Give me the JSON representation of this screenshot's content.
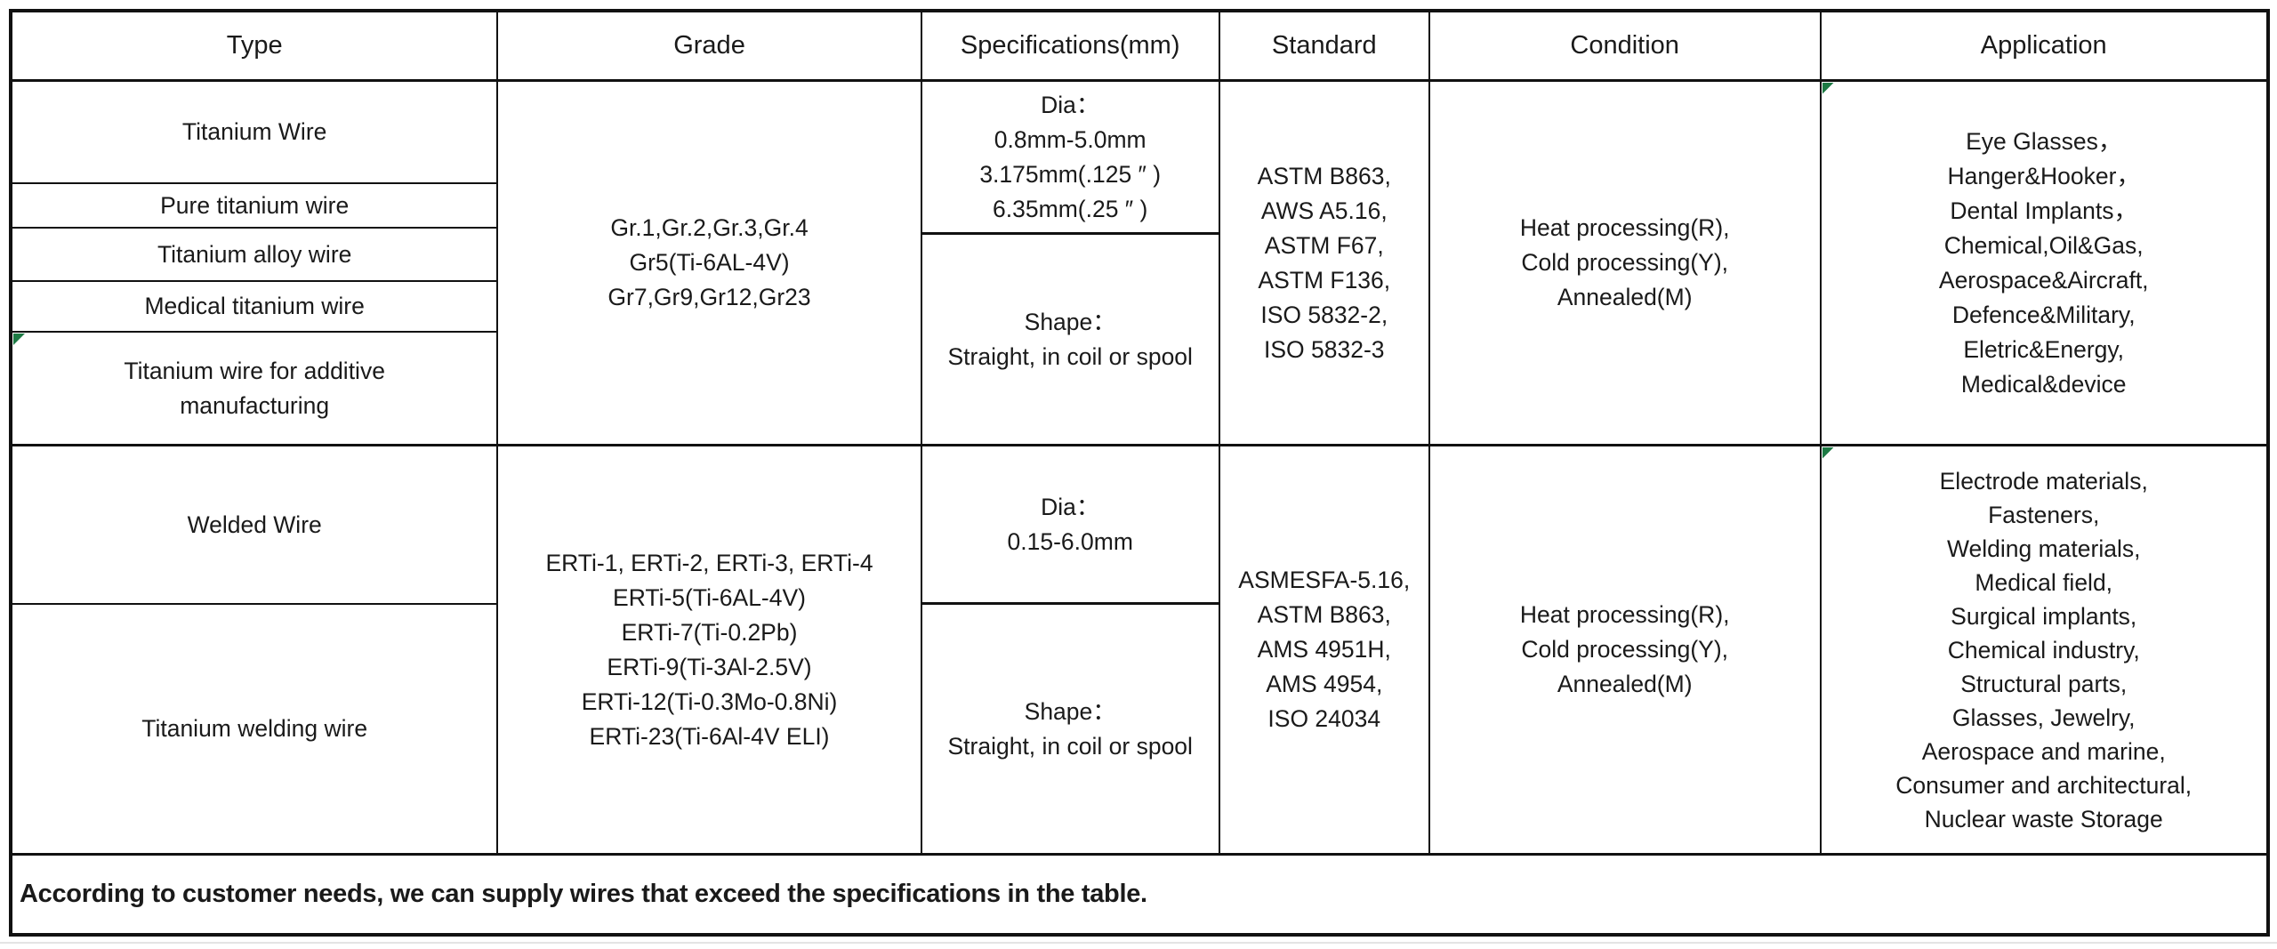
{
  "table": {
    "headers": {
      "type": "Type",
      "grade": "Grade",
      "specifications": "Specifications(mm)",
      "standard": "Standard",
      "condition": "Condition",
      "application": "Application"
    },
    "group1": {
      "types": [
        "Titanium Wire",
        "Pure titanium wire",
        "Titanium alloy wire",
        "Medical titanium wire",
        "Titanium wire for additive manufacturing"
      ],
      "grade_lines": [
        "Gr.1,Gr.2,Gr.3,Gr.4",
        "Gr5(Ti-6AL-4V)",
        "Gr7,Gr9,Gr12,Gr23"
      ],
      "spec_dia_lines": [
        "Dia：",
        "0.8mm-5.0mm",
        "3.175mm(.125 ″ )",
        "6.35mm(.25 ″ )"
      ],
      "spec_shape_lines": [
        "Shape：",
        "Straight, in coil or spool"
      ],
      "standard_lines": [
        "ASTM B863,",
        "AWS A5.16,",
        "ASTM F67,",
        "ASTM F136,",
        "ISO 5832-2,",
        "ISO 5832-3"
      ],
      "condition_lines": [
        "Heat processing(R),",
        "Cold processing(Y),",
        "Annealed(M)"
      ],
      "application_lines": [
        "Eye Glasses，",
        "Hanger&Hooker，",
        "Dental Implants，",
        "Chemical,Oil&Gas,",
        "Aerospace&Aircraft,",
        "Defence&Military,",
        "Eletric&Energy,",
        "Medical&device"
      ]
    },
    "group2": {
      "types": [
        "Welded Wire",
        "Titanium welding wire"
      ],
      "grade_lines": [
        "ERTi-1, ERTi-2, ERTi-3, ERTi-4",
        "ERTi-5(Ti-6AL-4V)",
        "ERTi-7(Ti-0.2Pb)",
        "ERTi-9(Ti-3Al-2.5V)",
        "ERTi-12(Ti-0.3Mo-0.8Ni)",
        "ERTi-23(Ti-6Al-4V ELI)"
      ],
      "spec_dia_lines": [
        "Dia：",
        "0.15-6.0mm"
      ],
      "spec_shape_lines": [
        "Shape：",
        "Straight, in coil or spool"
      ],
      "standard_lines": [
        "ASMESFA-5.16,",
        "ASTM B863,",
        "AMS 4951H,",
        "AMS 4954,",
        "ISO 24034"
      ],
      "condition_lines": [
        "Heat processing(R),",
        "Cold processing(Y),",
        "Annealed(M)"
      ],
      "application_lines": [
        "Electrode materials,",
        "Fasteners,",
        "Welding materials,",
        "Medical field,",
        "Surgical implants,",
        "Chemical industry,",
        "Structural parts,",
        "Glasses, Jewelry,",
        "Aerospace and marine,",
        "Consumer and architectural,",
        "Nuclear waste Storage"
      ]
    },
    "footer": "According to customer needs, we can supply wires that exceed the specifications in the table."
  },
  "colors": {
    "border": "#111111",
    "marker_green": "#1d7a44",
    "background": "#ffffff"
  }
}
